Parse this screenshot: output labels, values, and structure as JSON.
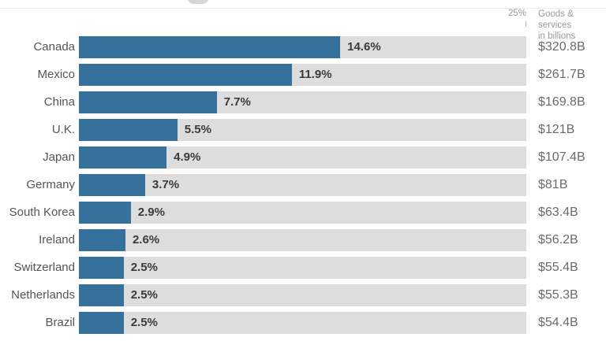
{
  "chart_data": {
    "type": "bar",
    "orientation": "horizontal",
    "axis_max": 25,
    "axis_max_label": "25%",
    "value_header_line1": "Goods & services",
    "value_header_line2": "in billions",
    "bar_color": "#36719b",
    "track_color": "#dddddd",
    "categories": [
      "Canada",
      "Mexico",
      "China",
      "U.K.",
      "Japan",
      "Germany",
      "South Korea",
      "Ireland",
      "Switzerland",
      "Netherlands",
      "Brazil"
    ],
    "rows": [
      {
        "country": "Canada",
        "share_pct": 14.6,
        "share_label": "14.6%",
        "value_label": "$320.8B"
      },
      {
        "country": "Mexico",
        "share_pct": 11.9,
        "share_label": "11.9%",
        "value_label": "$261.7B"
      },
      {
        "country": "China",
        "share_pct": 7.7,
        "share_label": "7.7%",
        "value_label": "$169.8B"
      },
      {
        "country": "U.K.",
        "share_pct": 5.5,
        "share_label": "5.5%",
        "value_label": "$121B"
      },
      {
        "country": "Japan",
        "share_pct": 4.9,
        "share_label": "4.9%",
        "value_label": "$107.4B"
      },
      {
        "country": "Germany",
        "share_pct": 3.7,
        "share_label": "3.7%",
        "value_label": "$81B"
      },
      {
        "country": "South Korea",
        "share_pct": 2.9,
        "share_label": "2.9%",
        "value_label": "$63.4B"
      },
      {
        "country": "Ireland",
        "share_pct": 2.6,
        "share_label": "2.6%",
        "value_label": "$56.2B"
      },
      {
        "country": "Switzerland",
        "share_pct": 2.5,
        "share_label": "2.5%",
        "value_label": "$55.4B"
      },
      {
        "country": "Netherlands",
        "share_pct": 2.5,
        "share_label": "2.5%",
        "value_label": "$55.3B"
      },
      {
        "country": "Brazil",
        "share_pct": 2.5,
        "share_label": "2.5%",
        "value_label": "$54.4B"
      }
    ]
  }
}
